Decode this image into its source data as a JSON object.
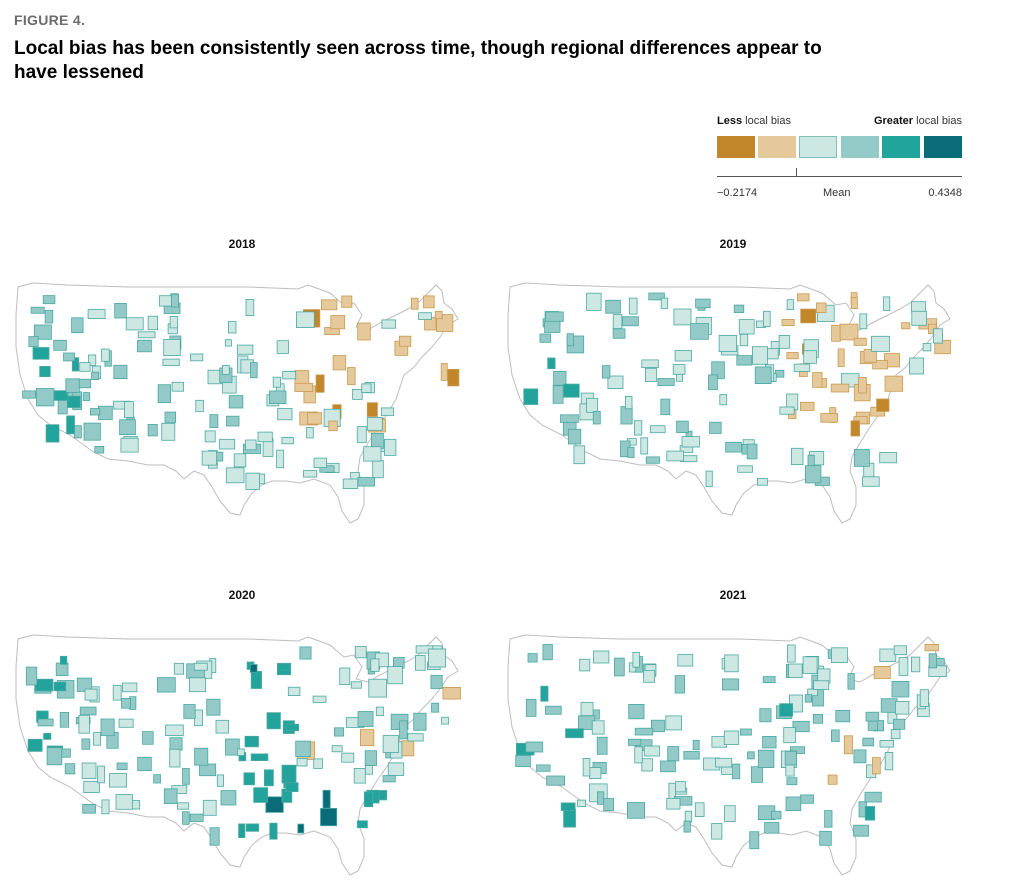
{
  "figure": {
    "label": "FIGURE 4.",
    "title": "Local bias has been consistently seen across time, though regional differences appear to have lessened"
  },
  "legend": {
    "less_bold": "Less",
    "less_rest": " local bias",
    "greater_bold": "Greater",
    "greater_rest": " local bias",
    "min_label": "−0.2174",
    "mean_label": "Mean",
    "max_label": "0.4348",
    "colors": [
      "#c2862b",
      "#e6c99b",
      "#cde7e3",
      "#93c9c6",
      "#22a49c",
      "#0a6c78"
    ]
  },
  "panels": [
    {
      "year": "2018",
      "west_class": 3,
      "east_class": 1,
      "south_class": 2
    },
    {
      "year": "2019",
      "west_class": 3,
      "east_class": 1,
      "south_class": 2
    },
    {
      "year": "2020",
      "west_class": 3,
      "east_class": 2,
      "south_class": 4
    },
    {
      "year": "2021",
      "west_class": 3,
      "east_class": 2,
      "south_class": 3
    }
  ]
}
